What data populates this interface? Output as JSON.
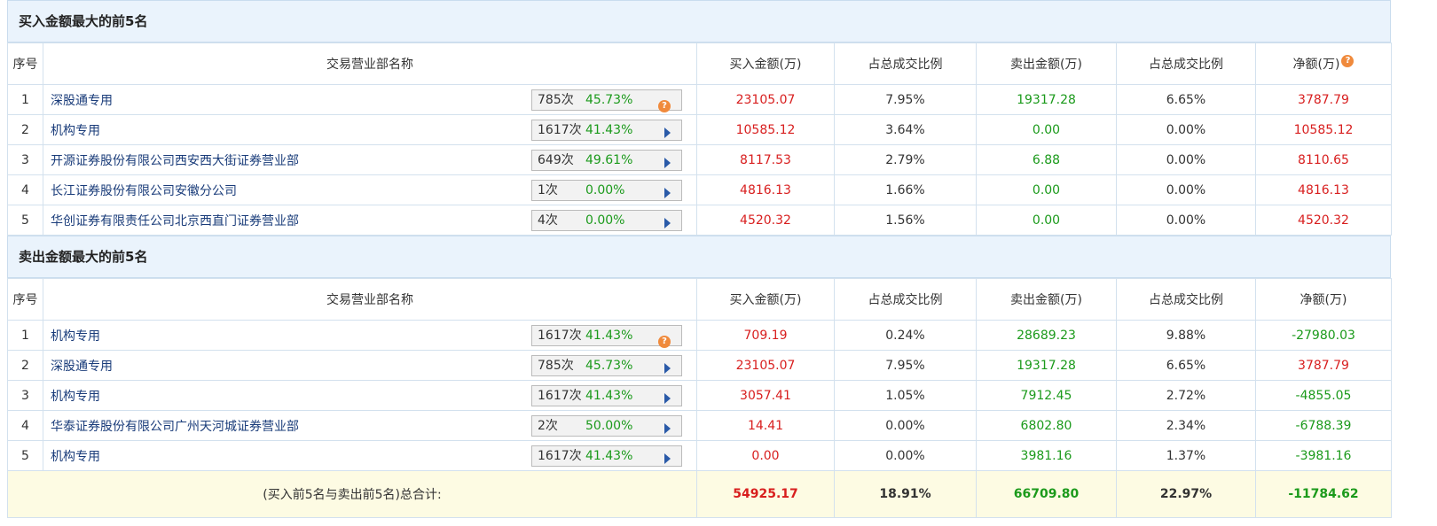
{
  "buy_section": {
    "title": "买入金额最大的前5名",
    "headers": [
      "序号",
      "交易营业部名称",
      "买入金额(万)",
      "占总成交比例",
      "卖出金额(万)",
      "占总成交比例",
      "净额(万)"
    ],
    "rows": [
      {
        "no": "1",
        "name": "深股通专用",
        "count": "785次",
        "pct": "45.73%",
        "icon": "question-icon",
        "buy": "23105.07",
        "buy_ratio": "7.95%",
        "sell": "19317.28",
        "sell_ratio": "6.65%",
        "net": "3787.79"
      },
      {
        "no": "2",
        "name": "机构专用",
        "count": "1617次",
        "pct": "41.43%",
        "icon": "play-arrow-icon",
        "buy": "10585.12",
        "buy_ratio": "3.64%",
        "sell": "0.00",
        "sell_ratio": "0.00%",
        "net": "10585.12"
      },
      {
        "no": "3",
        "name": "开源证券股份有限公司西安西大街证券营业部",
        "count": "649次",
        "pct": "49.61%",
        "icon": "play-arrow-icon",
        "buy": "8117.53",
        "buy_ratio": "2.79%",
        "sell": "6.88",
        "sell_ratio": "0.00%",
        "net": "8110.65"
      },
      {
        "no": "4",
        "name": "长江证券股份有限公司安徽分公司",
        "count": "1次",
        "pct": "0.00%",
        "icon": "play-arrow-icon",
        "buy": "4816.13",
        "buy_ratio": "1.66%",
        "sell": "0.00",
        "sell_ratio": "0.00%",
        "net": "4816.13"
      },
      {
        "no": "5",
        "name": "华创证券有限责任公司北京西直门证券营业部",
        "count": "4次",
        "pct": "0.00%",
        "icon": "play-arrow-icon",
        "buy": "4520.32",
        "buy_ratio": "1.56%",
        "sell": "0.00",
        "sell_ratio": "0.00%",
        "net": "4520.32"
      }
    ]
  },
  "sell_section": {
    "title": "卖出金额最大的前5名",
    "headers": [
      "序号",
      "交易营业部名称",
      "买入金额(万)",
      "占总成交比例",
      "卖出金额(万)",
      "占总成交比例",
      "净额(万)"
    ],
    "rows": [
      {
        "no": "1",
        "name": "机构专用",
        "count": "1617次",
        "pct": "41.43%",
        "icon": "question-icon",
        "buy": "709.19",
        "buy_ratio": "0.24%",
        "sell": "28689.23",
        "sell_ratio": "9.88%",
        "net": "-27980.03"
      },
      {
        "no": "2",
        "name": "深股通专用",
        "count": "785次",
        "pct": "45.73%",
        "icon": "play-arrow-icon",
        "buy": "23105.07",
        "buy_ratio": "7.95%",
        "sell": "19317.28",
        "sell_ratio": "6.65%",
        "net": "3787.79"
      },
      {
        "no": "3",
        "name": "机构专用",
        "count": "1617次",
        "pct": "41.43%",
        "icon": "play-arrow-icon",
        "buy": "3057.41",
        "buy_ratio": "1.05%",
        "sell": "7912.45",
        "sell_ratio": "2.72%",
        "net": "-4855.05"
      },
      {
        "no": "4",
        "name": "华泰证券股份有限公司广州天河城证券营业部",
        "count": "2次",
        "pct": "50.00%",
        "icon": "play-arrow-icon",
        "buy": "14.41",
        "buy_ratio": "0.00%",
        "sell": "6802.80",
        "sell_ratio": "2.34%",
        "net": "-6788.39"
      },
      {
        "no": "5",
        "name": "机构专用",
        "count": "1617次",
        "pct": "41.43%",
        "icon": "play-arrow-icon",
        "buy": "0.00",
        "buy_ratio": "0.00%",
        "sell": "3981.16",
        "sell_ratio": "1.37%",
        "net": "-3981.16"
      }
    ]
  },
  "totals": {
    "label": "(买入前5名与卖出前5名)总合计:",
    "buy": "54925.17",
    "buy_ratio": "18.91%",
    "sell": "66709.80",
    "sell_ratio": "22.97%",
    "net": "-11784.62"
  },
  "colors": {
    "positive": "#d81e1e",
    "negative": "#1b9a1b",
    "header_bg": "#eaf3fc",
    "total_bg": "#fdfbe3"
  }
}
